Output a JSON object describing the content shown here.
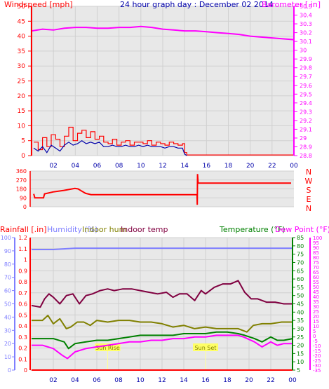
{
  "colors": {
    "wind": "#ff0000",
    "wind_avg": "#0000aa",
    "barometer": "#ff00ff",
    "title": "#0000aa",
    "direction": "#ff0000",
    "rain": "#ff0000",
    "humidity": "#7f7fff",
    "indoor_hum": "#808000",
    "indoor_temp": "#800040",
    "temperature": "#008000",
    "dew_point": "#ff00ff",
    "grid": "#d0d0d0",
    "panel_bg": "#e8e8e8"
  },
  "chart_data": [
    {
      "type": "line",
      "title": "24 hour graph day : December 02 2014",
      "left_axis_label": "Windspeed [mph]",
      "right_axis_label": "Barometer [.in]",
      "x_ticks": [
        "02",
        "04",
        "06",
        "08",
        "10",
        "12",
        "14",
        "16",
        "18",
        "20",
        "22",
        "00"
      ],
      "left_ticks": [
        "0",
        "5",
        "10",
        "15",
        "20",
        "25",
        "30",
        "35",
        "40",
        "45",
        "50"
      ],
      "left_range": [
        0,
        50
      ],
      "right_ticks": [
        "28.8",
        "28.9",
        "29",
        "29.1",
        "29.2",
        "29.3",
        "29.4",
        "29.5",
        "29.6",
        "29.7",
        "29.8",
        "29.9",
        "30",
        "30.1",
        "30.2",
        "30.3",
        "30.4",
        "30.5"
      ],
      "right_range": [
        28.8,
        30.5
      ],
      "x_range": [
        0,
        24
      ],
      "series": [
        {
          "key": "wind_gust",
          "x": [
            0.2,
            0.6,
            1.0,
            1.4,
            1.8,
            2.2,
            2.6,
            3.0,
            3.4,
            3.8,
            4.2,
            4.6,
            5.0,
            5.4,
            5.8,
            6.2,
            6.6,
            7.0,
            7.4,
            7.8,
            8.2,
            8.6,
            9.0,
            9.4,
            9.8,
            10.2,
            10.6,
            11.0,
            11.4,
            11.8,
            12.2,
            12.6,
            13.0,
            13.4,
            13.8,
            14.0,
            14.2,
            24.0
          ],
          "values": [
            4.5,
            2.0,
            6.0,
            3.0,
            7.0,
            5.5,
            3.0,
            6.5,
            9.5,
            5.0,
            7.5,
            8.5,
            6.0,
            8.0,
            5.5,
            6.5,
            4.5,
            4.0,
            5.5,
            3.5,
            4.5,
            5.0,
            3.5,
            4.5,
            4.5,
            4.0,
            5.0,
            3.5,
            4.5,
            4.0,
            3.5,
            4.5,
            4.0,
            3.5,
            4.0,
            1.0,
            0.2,
            0.2
          ]
        },
        {
          "key": "wind_avg",
          "x": [
            0.2,
            0.6,
            1.0,
            1.4,
            1.8,
            2.2,
            2.6,
            3.0,
            3.4,
            3.8,
            4.2,
            4.6,
            5.0,
            5.4,
            5.8,
            6.2,
            6.6,
            7.0,
            7.4,
            7.8,
            8.2,
            8.6,
            9.0,
            9.4,
            9.8,
            10.2,
            10.6,
            11.0,
            11.4,
            11.8,
            12.2,
            12.6,
            13.0,
            13.4,
            13.8,
            14.0,
            14.2
          ],
          "values": [
            2.5,
            1.5,
            3.0,
            1.0,
            3.5,
            2.5,
            1.5,
            3.5,
            4.5,
            3.5,
            4.0,
            5.0,
            4.0,
            4.5,
            4.0,
            4.5,
            3.0,
            3.0,
            3.5,
            3.0,
            3.0,
            3.5,
            3.0,
            3.0,
            3.5,
            3.0,
            3.5,
            3.0,
            3.0,
            3.0,
            2.5,
            3.0,
            3.0,
            2.5,
            2.5,
            0.5,
            0.0
          ]
        },
        {
          "key": "barometer",
          "axis": "right",
          "x": [
            0,
            1,
            2,
            3,
            4,
            5,
            6,
            7,
            8,
            9,
            10,
            11,
            12,
            13,
            14,
            15,
            16,
            17,
            18,
            19,
            20,
            21,
            22,
            23,
            24
          ],
          "values": [
            30.22,
            30.24,
            30.23,
            30.25,
            30.26,
            30.26,
            30.25,
            30.25,
            30.26,
            30.26,
            30.27,
            30.26,
            30.24,
            30.23,
            30.22,
            30.22,
            30.21,
            30.2,
            30.19,
            30.18,
            30.16,
            30.15,
            30.14,
            30.13,
            30.12
          ]
        }
      ]
    },
    {
      "type": "line",
      "left_labels": [
        "0",
        "90",
        "180",
        "270",
        "360"
      ],
      "right_labels": [
        "N",
        "W",
        "S",
        "E",
        "N"
      ],
      "y_range": [
        0,
        360
      ],
      "x_range": [
        0,
        24
      ],
      "series": [
        {
          "key": "direction",
          "x": [
            0.2,
            0.3,
            1.1,
            1.2,
            2.0,
            3.0,
            4.0,
            4.3,
            4.6,
            5.0,
            5.5,
            6.0,
            8.0,
            10.0,
            12.0,
            14.0,
            15.3,
            15.32,
            15.35,
            15.4,
            16.0,
            18.0,
            20.0,
            22.0,
            24.0
          ],
          "values": [
            130,
            90,
            90,
            130,
            150,
            165,
            185,
            180,
            160,
            135,
            122,
            122,
            122,
            122,
            122,
            122,
            122,
            20,
            330,
            238,
            238,
            238,
            238,
            238,
            238
          ]
        }
      ]
    },
    {
      "type": "line",
      "labels": [
        "Rainfall [.in]",
        "Humidity (%)",
        "Indoor hum",
        "Indoor temp",
        "Temperature (°F)",
        "Dew Point (°F)"
      ],
      "x_ticks": [
        "02",
        "04",
        "06",
        "08",
        "10",
        "12",
        "14",
        "16",
        "18",
        "20",
        "22",
        "00"
      ],
      "humidity_ticks": [
        "0",
        "10",
        "20",
        "30",
        "40",
        "50",
        "60",
        "70",
        "80",
        "90",
        "100"
      ],
      "humidity_range": [
        0,
        100
      ],
      "rain_ticks": [
        "0",
        "0.1",
        "0.2",
        "0.3",
        "0.4",
        "0.5",
        "0.6",
        "0.7",
        "0.8",
        "0.9",
        "1",
        "1.1",
        "1.2"
      ],
      "rain_range": [
        0,
        1.2
      ],
      "temp_ticks": [
        "5",
        "10",
        "15",
        "20",
        "25",
        "30",
        "35",
        "40",
        "45",
        "50",
        "55",
        "60",
        "65",
        "70",
        "75",
        "80",
        "85"
      ],
      "temp_range": [
        5,
        85
      ],
      "dew_ticks": [
        "-35",
        "-30",
        "-25",
        "-20",
        "-15",
        "-10",
        "-5",
        "0",
        "5",
        "10",
        "15",
        "20",
        "25",
        "30",
        "35",
        "40",
        "45",
        "50",
        "55",
        "60",
        "65",
        "70",
        "75",
        "80",
        "85",
        "90",
        "95",
        "100"
      ],
      "dew_range": [
        -35,
        100
      ],
      "markers": [
        {
          "x": 7.0,
          "text": "Sun Rise"
        },
        {
          "x": 16.0,
          "text": "Sun Set"
        }
      ],
      "x_range": [
        0,
        24
      ],
      "series": [
        {
          "key": "rainfall",
          "x": [
            0,
            24
          ],
          "values": [
            0,
            0
          ]
        },
        {
          "key": "humidity",
          "x": [
            0,
            2,
            4,
            6,
            8,
            10,
            12,
            14,
            16,
            18,
            20,
            22,
            24
          ],
          "values": [
            91,
            91,
            92,
            92,
            92,
            92,
            92,
            92,
            92,
            92,
            92,
            92,
            92
          ]
        },
        {
          "key": "indoor_temp",
          "x": [
            0,
            0.8,
            1.2,
            1.6,
            2.0,
            2.6,
            3.2,
            3.8,
            4.4,
            5.0,
            5.6,
            6.3,
            7.0,
            7.6,
            8.4,
            9.2,
            10.0,
            10.8,
            11.6,
            12.4,
            13.0,
            13.6,
            14.3,
            15.0,
            15.6,
            16.0,
            16.8,
            17.6,
            18.3,
            19.0,
            19.6,
            20.2,
            20.8,
            21.6,
            22.4,
            23.2,
            24.0
          ],
          "values": [
            44,
            43,
            48,
            51,
            49,
            45,
            50,
            51,
            45,
            50,
            51,
            53,
            54,
            53,
            54,
            54,
            53,
            52,
            51,
            52,
            49,
            51,
            51,
            47,
            53,
            51,
            55,
            57,
            57,
            59,
            52,
            48,
            48,
            46,
            46,
            45,
            45
          ]
        },
        {
          "key": "indoor_hum",
          "x": [
            0,
            1.0,
            1.5,
            2.0,
            2.6,
            3.2,
            3.6,
            4.2,
            4.8,
            5.4,
            6.0,
            7.0,
            8.0,
            9.0,
            10.0,
            11.0,
            12.0,
            13.0,
            14.0,
            15.0,
            16.0,
            17.0,
            18.0,
            19.0,
            19.8,
            20.4,
            21.2,
            22.0,
            23.0,
            24.0
          ],
          "values": [
            35,
            35,
            38,
            33,
            36,
            30,
            31,
            34,
            34,
            32,
            35,
            34,
            35,
            35,
            34,
            34,
            33,
            31,
            32,
            30,
            31,
            30,
            30,
            30,
            28,
            32,
            33,
            33,
            34,
            34
          ]
        },
        {
          "key": "temperature",
          "x": [
            0,
            1.0,
            2.0,
            3.0,
            3.4,
            4.0,
            5.0,
            6.0,
            7.0,
            8.0,
            9.0,
            10.0,
            11.0,
            12.0,
            13.0,
            14.0,
            15.0,
            16.0,
            17.0,
            18.0,
            19.0,
            19.6,
            20.5,
            21.2,
            22.0,
            22.6,
            23.2,
            24.0
          ],
          "values": [
            24,
            24,
            24,
            22,
            18,
            21,
            22,
            23,
            23,
            24,
            25,
            26,
            26,
            26,
            26,
            27,
            27,
            27,
            28,
            28,
            27,
            26,
            24,
            22,
            25,
            23,
            23,
            24
          ]
        },
        {
          "key": "dew_point",
          "x": [
            0,
            1.0,
            2.0,
            2.8,
            3.3,
            4.0,
            5.0,
            6.0,
            7.0,
            8.0,
            9.0,
            10.0,
            11.0,
            12.0,
            13.0,
            14.0,
            15.0,
            16.0,
            17.0,
            18.0,
            19.0,
            19.5,
            20.5,
            21.2,
            22.0,
            22.6,
            23.2,
            24.0
          ],
          "values": [
            20,
            20,
            18,
            14,
            12,
            16,
            18,
            19,
            20,
            21,
            22,
            22,
            23,
            23,
            24,
            24,
            25,
            25,
            26,
            26,
            26,
            25,
            22,
            19,
            22,
            20,
            21,
            21
          ]
        }
      ]
    }
  ]
}
